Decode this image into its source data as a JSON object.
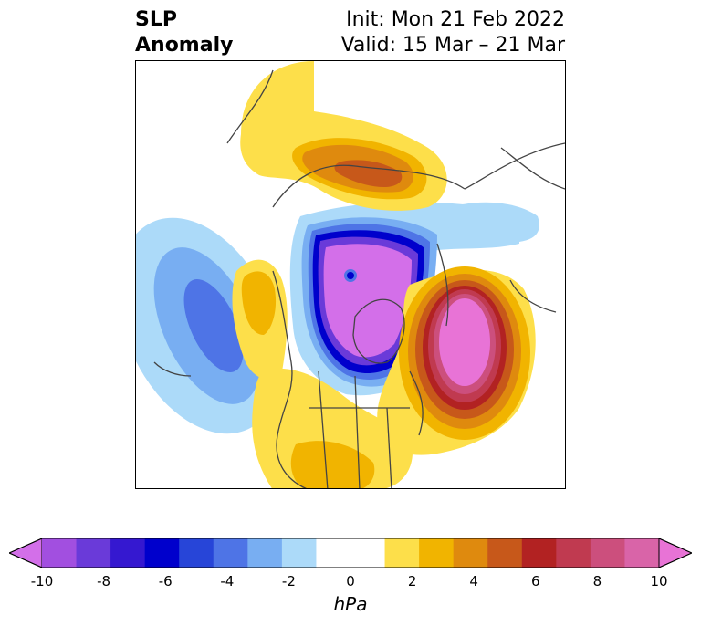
{
  "header": {
    "title_line1": "SLP",
    "title_line2": "Anomaly",
    "init_text": "Init: Mon 21 Feb 2022",
    "valid_text": "Valid: 15 Mar – 21 Mar"
  },
  "colorbar": {
    "colors": [
      "#d36fe9",
      "#a24fe0",
      "#6a3ad9",
      "#3518d0",
      "#0000cc",
      "#2745d8",
      "#4e74e6",
      "#78aef2",
      "#acdaf9",
      "#ffffff",
      "#ffffff",
      "#fddf4a",
      "#f1b400",
      "#df8a0e",
      "#c7581a",
      "#b22222",
      "#c03a50",
      "#cc4f7d",
      "#d964a8",
      "#e873d6"
    ],
    "ticks": [
      "-10",
      "-8",
      "-6",
      "-4",
      "-2",
      "0",
      "2",
      "4",
      "6",
      "8",
      "10"
    ],
    "unit": "hPa"
  },
  "colors": {
    "neg_light": "#acdaf9",
    "neg_mid": "#78aef2",
    "neg_blue": "#4e74e6",
    "neg_deep": "#0000cc",
    "neg_violet": "#6a3ad9",
    "neg_purple": "#d36fe9",
    "pos_yellow": "#fddf4a",
    "pos_gold": "#f1b400",
    "pos_orange": "#df8a0e",
    "pos_rust": "#c7581a",
    "pos_red": "#b22222",
    "pos_pink": "#cc4f7d",
    "pos_magenta": "#e873d6",
    "coast": "#444444"
  }
}
